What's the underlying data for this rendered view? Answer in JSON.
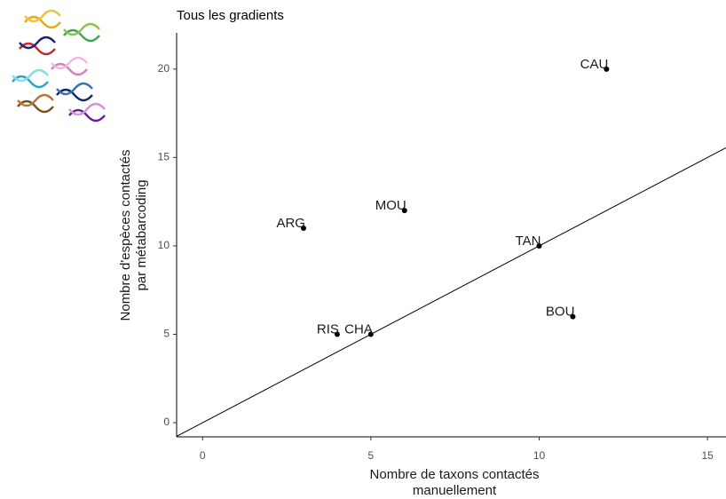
{
  "chart_data": {
    "type": "scatter",
    "title": "Tous les gradients",
    "xlabel": [
      "Nombre de taxons contactés",
      "manuellement"
    ],
    "ylabel": [
      "Nombre d'espèces contactés",
      "par métabarcoding"
    ],
    "labels": [
      "CAU",
      "MOU",
      "ARG",
      "TAN",
      "BOU",
      "RIS",
      "CHA"
    ],
    "x": [
      12,
      6,
      3,
      10,
      11,
      4,
      5
    ],
    "values": [
      20,
      12,
      11,
      10,
      6,
      5,
      5
    ],
    "color": "#000000",
    "xlim": [
      -0.77,
      15.55
    ],
    "ylim": [
      -0.8,
      22.05
    ],
    "xticks": [
      0,
      5,
      10,
      15
    ],
    "yticks": [
      0,
      5,
      10,
      15,
      20
    ],
    "reference_line": {
      "slope": 1,
      "intercept": 0
    },
    "grid": false
  }
}
